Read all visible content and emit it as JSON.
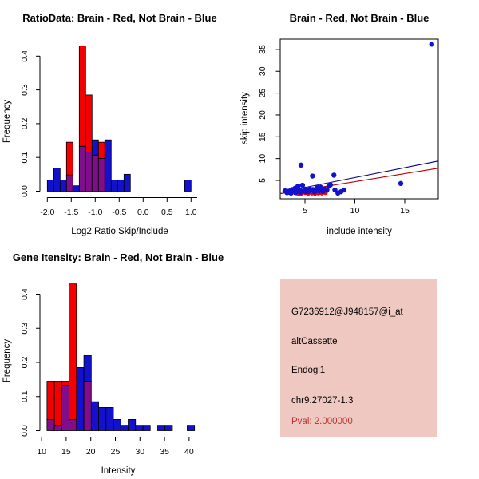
{
  "page": {
    "background": "#ffffff"
  },
  "colors": {
    "red": "#F40000",
    "blue": "#1111CE",
    "overlap": "#800D8A",
    "fit_blue": "#00008B",
    "fit_red": "#BB0000",
    "axis": "#000000"
  },
  "chart_data": [
    {
      "id": "ratio_histogram",
      "type": "bar",
      "subtype": "overlaid-histograms",
      "title": "RatioData: Brain - Red, Not Brain - Blue",
      "xlabel": "Log2 Ratio Skip/Include",
      "ylabel": "Frequency",
      "legend_note": "Brain histogram red, Not-Brain histogram blue, overlap purple",
      "xlim": [
        -2.1,
        1.1
      ],
      "ylim": [
        0,
        0.445
      ],
      "xticks": [
        {
          "v": -2.0,
          "label": "-2.0"
        },
        {
          "v": -1.5,
          "label": "-1.5"
        },
        {
          "v": -1.0,
          "label": "-1.0"
        },
        {
          "v": -0.5,
          "label": "-0.5"
        },
        {
          "v": 0.0,
          "label": "0.0"
        },
        {
          "v": 0.5,
          "label": "0.5"
        },
        {
          "v": 1.0,
          "label": "1.0"
        }
      ],
      "yticks": [
        {
          "v": 0.0,
          "label": "0.0"
        },
        {
          "v": 0.1,
          "label": "0.1"
        },
        {
          "v": 0.2,
          "label": "0.2"
        },
        {
          "v": 0.3,
          "label": "0.3"
        },
        {
          "v": 0.4,
          "label": "0.4"
        }
      ],
      "bars": [
        {
          "x0": -2.0,
          "x1": -1.867,
          "red": 0,
          "blue": 0.033
        },
        {
          "x0": -1.867,
          "x1": -1.733,
          "red": 0,
          "blue": 0.068
        },
        {
          "x0": -1.733,
          "x1": -1.6,
          "red": 0,
          "blue": 0.033
        },
        {
          "x0": -1.6,
          "x1": -1.467,
          "red": 0.145,
          "blue": 0.048
        },
        {
          "x0": -1.467,
          "x1": -1.333,
          "red": 0,
          "blue": 0.016
        },
        {
          "x0": -1.333,
          "x1": -1.2,
          "red": 0.43,
          "blue": 0.133
        },
        {
          "x0": -1.2,
          "x1": -1.067,
          "red": 0.285,
          "blue": 0.116
        },
        {
          "x0": -1.067,
          "x1": -0.933,
          "red": 0.107,
          "blue": 0.152
        },
        {
          "x0": -0.933,
          "x1": -0.8,
          "red": 0.145,
          "blue": 0.097
        },
        {
          "x0": -0.8,
          "x1": -0.667,
          "red": 0,
          "blue": 0.152
        },
        {
          "x0": -0.667,
          "x1": -0.533,
          "red": 0,
          "blue": 0.033
        },
        {
          "x0": -0.533,
          "x1": -0.4,
          "red": 0,
          "blue": 0.033
        },
        {
          "x0": -0.4,
          "x1": -0.267,
          "red": 0,
          "blue": 0.05
        },
        {
          "x0": 0.867,
          "x1": 1.0,
          "red": 0,
          "blue": 0.033
        }
      ]
    },
    {
      "id": "intensity_scatter",
      "type": "scatter",
      "title": "Brain - Red, Not Brain - Blue",
      "xlabel": "include intensity",
      "ylabel": "skip intensity",
      "xlim": [
        2.5,
        18.4
      ],
      "ylim": [
        0.8,
        37.4
      ],
      "xticks": [
        {
          "v": 5,
          "label": "5"
        },
        {
          "v": 10,
          "label": "10"
        },
        {
          "v": 15,
          "label": "15"
        }
      ],
      "yticks": [
        {
          "v": 5,
          "label": "5"
        },
        {
          "v": 10,
          "label": "10"
        },
        {
          "v": 15,
          "label": "15"
        },
        {
          "v": 20,
          "label": "20"
        },
        {
          "v": 25,
          "label": "25"
        },
        {
          "v": 30,
          "label": "30"
        },
        {
          "v": 35,
          "label": "35"
        }
      ],
      "blue_points": [
        [
          3.0,
          2.6
        ],
        [
          3.2,
          2.2
        ],
        [
          3.3,
          2.5
        ],
        [
          3.4,
          2.3
        ],
        [
          3.5,
          2.6
        ],
        [
          3.6,
          2.1
        ],
        [
          3.7,
          2.9
        ],
        [
          3.8,
          2.4
        ],
        [
          3.9,
          2.7
        ],
        [
          4.0,
          3.2
        ],
        [
          4.05,
          2.2
        ],
        [
          4.1,
          2.6
        ],
        [
          4.2,
          2.9
        ],
        [
          4.3,
          3.7
        ],
        [
          4.4,
          2.5
        ],
        [
          4.5,
          2.8
        ],
        [
          4.55,
          2.3
        ],
        [
          4.6,
          8.5
        ],
        [
          4.75,
          3.9
        ],
        [
          4.9,
          2.6
        ],
        [
          5.0,
          3.0
        ],
        [
          5.1,
          2.4
        ],
        [
          5.2,
          2.7
        ],
        [
          5.35,
          2.5
        ],
        [
          5.5,
          3.0
        ],
        [
          5.75,
          6.0
        ],
        [
          5.8,
          2.9
        ],
        [
          5.95,
          2.4
        ],
        [
          6.1,
          2.7
        ],
        [
          6.2,
          3.4
        ],
        [
          6.4,
          2.6
        ],
        [
          6.6,
          3.4
        ],
        [
          6.8,
          2.5
        ],
        [
          7.0,
          3.0
        ],
        [
          7.2,
          2.8
        ],
        [
          7.4,
          3.7
        ],
        [
          7.55,
          4.0
        ],
        [
          7.9,
          6.2
        ],
        [
          8.0,
          2.8
        ],
        [
          8.3,
          2.1
        ],
        [
          8.6,
          2.4
        ],
        [
          8.9,
          2.8
        ],
        [
          14.6,
          4.3
        ],
        [
          17.7,
          36.2
        ]
      ],
      "red_points": [
        [
          4.2,
          2.1
        ],
        [
          4.45,
          1.9
        ],
        [
          4.6,
          2.0
        ],
        [
          5.0,
          2.2
        ],
        [
          5.3,
          2.0
        ],
        [
          5.7,
          2.1
        ],
        [
          6.0,
          2.0
        ],
        [
          6.35,
          2.1
        ],
        [
          6.7,
          2.1
        ],
        [
          7.05,
          2.2
        ]
      ],
      "fit_lines": [
        {
          "color_key": "fit_red",
          "x1": 2.5,
          "y1": 1.95,
          "x2": 18.4,
          "y2": 7.8
        },
        {
          "color_key": "fit_blue",
          "x1": 2.5,
          "y1": 2.26,
          "x2": 18.4,
          "y2": 9.45
        }
      ]
    },
    {
      "id": "gene_histogram",
      "type": "bar",
      "subtype": "overlaid-histograms",
      "title": "Gene Itensity: Brain - Red, Not Brain - Blue",
      "xlabel": "Intensity",
      "ylabel": "Frequency",
      "legend_note": "Brain histogram red, Not-Brain histogram blue, overlap purple",
      "xlim": [
        10,
        41.5
      ],
      "ylim": [
        0,
        0.445
      ],
      "xticks": [
        {
          "v": 10,
          "label": "10"
        },
        {
          "v": 15,
          "label": "15"
        },
        {
          "v": 20,
          "label": "20"
        },
        {
          "v": 25,
          "label": "25"
        },
        {
          "v": 30,
          "label": "30"
        },
        {
          "v": 35,
          "label": "35"
        },
        {
          "v": 40,
          "label": "40"
        }
      ],
      "yticks": [
        {
          "v": 0.0,
          "label": "0.0"
        },
        {
          "v": 0.1,
          "label": "0.1"
        },
        {
          "v": 0.2,
          "label": "0.2"
        },
        {
          "v": 0.3,
          "label": "0.3"
        },
        {
          "v": 0.4,
          "label": "0.4"
        }
      ],
      "bars": [
        {
          "x0": 11.1,
          "x1": 12.6,
          "red": 0.145,
          "blue": 0.033
        },
        {
          "x0": 12.6,
          "x1": 14.1,
          "red": 0.145,
          "blue": 0.016
        },
        {
          "x0": 14.1,
          "x1": 15.6,
          "red": 0.145,
          "blue": 0.133
        },
        {
          "x0": 15.6,
          "x1": 17.1,
          "red": 0.43,
          "blue": 0.033
        },
        {
          "x0": 17.1,
          "x1": 18.6,
          "red": 0,
          "blue": 0.185
        },
        {
          "x0": 18.6,
          "x1": 20.1,
          "red": 0.145,
          "blue": 0.22
        },
        {
          "x0": 20.1,
          "x1": 21.6,
          "red": 0,
          "blue": 0.085
        },
        {
          "x0": 21.6,
          "x1": 23.1,
          "red": 0,
          "blue": 0.068
        },
        {
          "x0": 23.1,
          "x1": 24.6,
          "red": 0,
          "blue": 0.068
        },
        {
          "x0": 24.6,
          "x1": 26.1,
          "red": 0,
          "blue": 0.033
        },
        {
          "x0": 26.1,
          "x1": 27.6,
          "red": 0,
          "blue": 0.016
        },
        {
          "x0": 27.6,
          "x1": 29.1,
          "red": 0,
          "blue": 0.033
        },
        {
          "x0": 29.1,
          "x1": 30.6,
          "red": 0,
          "blue": 0.016
        },
        {
          "x0": 30.6,
          "x1": 32.1,
          "red": 0,
          "blue": 0.016
        },
        {
          "x0": 33.6,
          "x1": 35.1,
          "red": 0,
          "blue": 0.016
        },
        {
          "x0": 35.1,
          "x1": 36.6,
          "red": 0,
          "blue": 0.016
        },
        {
          "x0": 39.6,
          "x1": 41.1,
          "red": 0,
          "blue": 0.016
        }
      ]
    }
  ],
  "info_panel": {
    "background": "#EFC9C1",
    "lines": [
      {
        "text": "G7236912@J948157@i_at",
        "color": "#000000"
      },
      {
        "text": "altCassette",
        "color": "#000000"
      },
      {
        "text": "Endogl1",
        "color": "#000000"
      },
      {
        "text": "chr9.27027-1.3",
        "color": "#000000"
      },
      {
        "text": "Pval: 2.000000",
        "color": "#C03030"
      }
    ]
  }
}
